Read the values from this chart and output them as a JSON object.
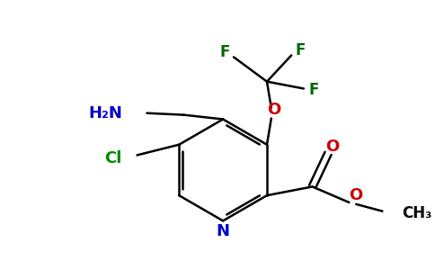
{
  "background_color": "#ffffff",
  "bond_color": "#000000",
  "colors": {
    "N": "#0000cc",
    "O": "#cc0000",
    "Cl": "#008800",
    "F": "#006600",
    "NH2": "#0000cc",
    "C": "#000000"
  },
  "figsize": [
    4.84,
    3.0
  ],
  "dpi": 100
}
